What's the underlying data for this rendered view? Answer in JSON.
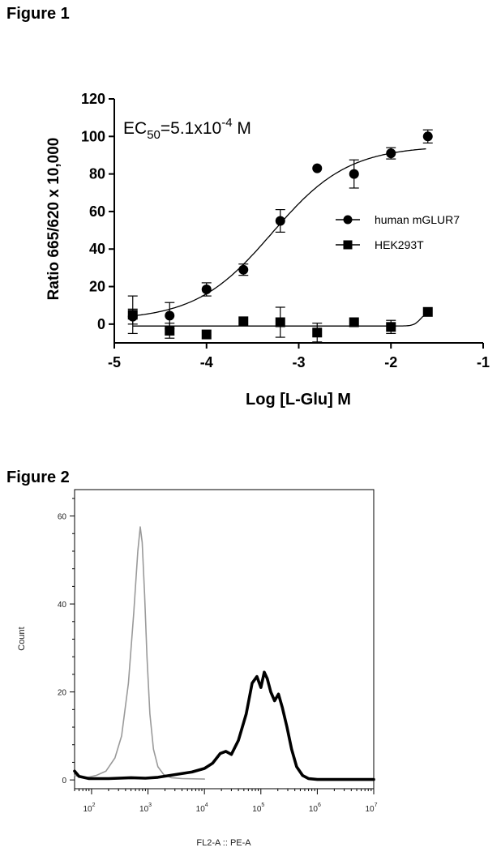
{
  "figure1": {
    "heading": "Figure 1",
    "annotation": {
      "prefix": "EC",
      "sub": "50",
      "mid": "=5.1x10",
      "sup": "-4",
      "suffix": " M"
    },
    "chart_data": {
      "type": "scatter",
      "xlabel": "Log [L-Glu] M",
      "ylabel": "Ratio 665/620 x 10,000",
      "xlim": [
        -5,
        -1
      ],
      "ylim": [
        -10,
        120
      ],
      "x_ticks": [
        "-5",
        "-4",
        "-3",
        "-2",
        "-1"
      ],
      "y_ticks": [
        "120",
        "100",
        "80",
        "60",
        "40",
        "20",
        "0"
      ],
      "legend_position": "right",
      "series": [
        {
          "name": "human mGLUR7",
          "marker": "circle",
          "color": "#000000",
          "points": [
            {
              "x": -4.8,
              "y": 4,
              "err": 4
            },
            {
              "x": -4.4,
              "y": 4.5,
              "err": 7
            },
            {
              "x": -4.0,
              "y": 18.5,
              "err": 3.5
            },
            {
              "x": -3.6,
              "y": 29,
              "err": 3
            },
            {
              "x": -3.2,
              "y": 55,
              "err": 6
            },
            {
              "x": -2.8,
              "y": 83,
              "err": 0
            },
            {
              "x": -2.4,
              "y": 80,
              "err": 7.5
            },
            {
              "x": -2.0,
              "y": 91,
              "err": 3
            },
            {
              "x": -1.6,
              "y": 100,
              "err": 3.5
            }
          ],
          "fit": {
            "bottom": 2,
            "top": 95,
            "log_ec50": -3.29,
            "hill": 1.05
          }
        },
        {
          "name": "HEK293T",
          "marker": "square",
          "color": "#000000",
          "points": [
            {
              "x": -4.8,
              "y": 5,
              "err": 10
            },
            {
              "x": -4.4,
              "y": -3.5,
              "err": 4
            },
            {
              "x": -4.0,
              "y": -5.5,
              "err": 0
            },
            {
              "x": -3.6,
              "y": 1.5,
              "err": 0
            },
            {
              "x": -3.2,
              "y": 1,
              "err": 8
            },
            {
              "x": -2.8,
              "y": -4.5,
              "err": 5
            },
            {
              "x": -2.4,
              "y": 1,
              "err": 0
            },
            {
              "x": -2.0,
              "y": -1.5,
              "err": 3.5
            },
            {
              "x": -1.6,
              "y": 6.5,
              "err": 0
            }
          ]
        }
      ]
    }
  },
  "figure2": {
    "heading": "Figure 2",
    "chart_data": {
      "type": "area",
      "xlabel": "FL2-A :: PE-A",
      "ylabel": "Count",
      "x_scale": "log",
      "xlim": [
        50,
        10000000
      ],
      "ylim": [
        -2,
        66
      ],
      "y_ticks": [
        "60",
        "40",
        "20",
        "0"
      ],
      "x_ticks": [
        {
          "base": "10",
          "exp": "2"
        },
        {
          "base": "10",
          "exp": "3"
        },
        {
          "base": "10",
          "exp": "4"
        },
        {
          "base": "10",
          "exp": "5"
        },
        {
          "base": "10",
          "exp": "6"
        },
        {
          "base": "10",
          "exp": "7"
        }
      ],
      "series": [
        {
          "name": "",
          "color": "#9a9a9a",
          "points": [
            [
              50,
              1
            ],
            [
              80,
              0.5
            ],
            [
              120,
              1
            ],
            [
              180,
              2
            ],
            [
              260,
              5
            ],
            [
              340,
              10
            ],
            [
              450,
              22
            ],
            [
              560,
              38
            ],
            [
              660,
              52
            ],
            [
              730,
              57.5
            ],
            [
              790,
              54
            ],
            [
              870,
              42
            ],
            [
              960,
              28
            ],
            [
              1080,
              15
            ],
            [
              1250,
              7
            ],
            [
              1500,
              3
            ],
            [
              1900,
              1.2
            ],
            [
              2600,
              0.5
            ],
            [
              4000,
              0.3
            ],
            [
              10000,
              0.2
            ]
          ]
        },
        {
          "name": "",
          "color": "#000000",
          "points": [
            [
              50,
              2
            ],
            [
              60,
              0.8
            ],
            [
              90,
              0.3
            ],
            [
              200,
              0.3
            ],
            [
              500,
              0.5
            ],
            [
              900,
              0.4
            ],
            [
              1500,
              0.6
            ],
            [
              3000,
              1.2
            ],
            [
              6000,
              1.8
            ],
            [
              10000,
              2.6
            ],
            [
              14000,
              3.8
            ],
            [
              19000,
              6
            ],
            [
              24000,
              6.5
            ],
            [
              30000,
              5.8
            ],
            [
              40000,
              9
            ],
            [
              55000,
              15
            ],
            [
              70000,
              22
            ],
            [
              85000,
              23.5
            ],
            [
              100000,
              21
            ],
            [
              115000,
              24.5
            ],
            [
              130000,
              23
            ],
            [
              150000,
              20
            ],
            [
              175000,
              18
            ],
            [
              205000,
              19.5
            ],
            [
              240000,
              16.5
            ],
            [
              290000,
              12
            ],
            [
              350000,
              7
            ],
            [
              430000,
              3
            ],
            [
              550000,
              1
            ],
            [
              700000,
              0.3
            ],
            [
              1000000,
              0.1
            ],
            [
              10000000,
              0.1
            ]
          ]
        }
      ]
    }
  }
}
